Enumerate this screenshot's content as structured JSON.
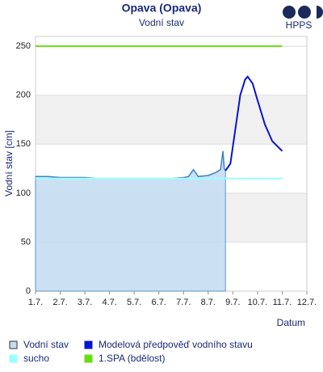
{
  "logo": "HPPS",
  "chart_data": {
    "type": "line",
    "title": "Opava (Opava)",
    "subtitle": "Vodní stav",
    "y_label": "Vodní stav [cm]",
    "x_label": "Datum",
    "xlim": [
      1,
      12
    ],
    "xticks": [
      {
        "value": 1,
        "label": "1.7."
      },
      {
        "value": 2,
        "label": "2.7."
      },
      {
        "value": 3,
        "label": "3.7."
      },
      {
        "value": 4,
        "label": "4.7."
      },
      {
        "value": 5,
        "label": "5.7."
      },
      {
        "value": 6,
        "label": "6.7."
      },
      {
        "value": 7,
        "label": "7.7."
      },
      {
        "value": 8,
        "label": "8.7."
      },
      {
        "value": 9,
        "label": "9.7."
      },
      {
        "value": 10,
        "label": "10.7."
      },
      {
        "value": 11,
        "label": "11.7."
      },
      {
        "value": 12,
        "label": "12.7."
      }
    ],
    "ylim": [
      0,
      260
    ],
    "yticks": [
      0,
      50,
      100,
      150,
      200,
      250
    ],
    "series": [
      {
        "name": "Vodní stav",
        "color": "#3d82c4",
        "fill": "#c5ddf2",
        "x": [
          1,
          1.5,
          2,
          2.5,
          3,
          3.5,
          4,
          4.5,
          5,
          5.5,
          6,
          6.5,
          7,
          7.2,
          7.4,
          7.6,
          8,
          8.3,
          8.5,
          8.6,
          8.65,
          8.7
        ],
        "values": [
          117,
          117,
          116,
          116,
          116,
          115,
          115,
          115,
          115,
          115,
          115,
          115,
          116,
          117,
          124,
          117,
          118,
          121,
          124,
          143,
          125,
          123
        ]
      },
      {
        "name": "Modelová předpověď vodního stavu",
        "color": "#0a14d0",
        "x": [
          8.7,
          8.9,
          9.1,
          9.3,
          9.5,
          9.6,
          9.8,
          10,
          10.3,
          10.6,
          11
        ],
        "values": [
          123,
          130,
          165,
          200,
          216,
          219,
          212,
          195,
          170,
          153,
          143
        ]
      },
      {
        "name": "sucho",
        "color": "#99ffff",
        "x": [
          1,
          11
        ],
        "values": [
          115,
          115
        ]
      },
      {
        "name": "1.SPA (bdělost)",
        "color": "#66dd11",
        "x": [
          1,
          11
        ],
        "values": [
          250,
          250
        ]
      }
    ]
  }
}
